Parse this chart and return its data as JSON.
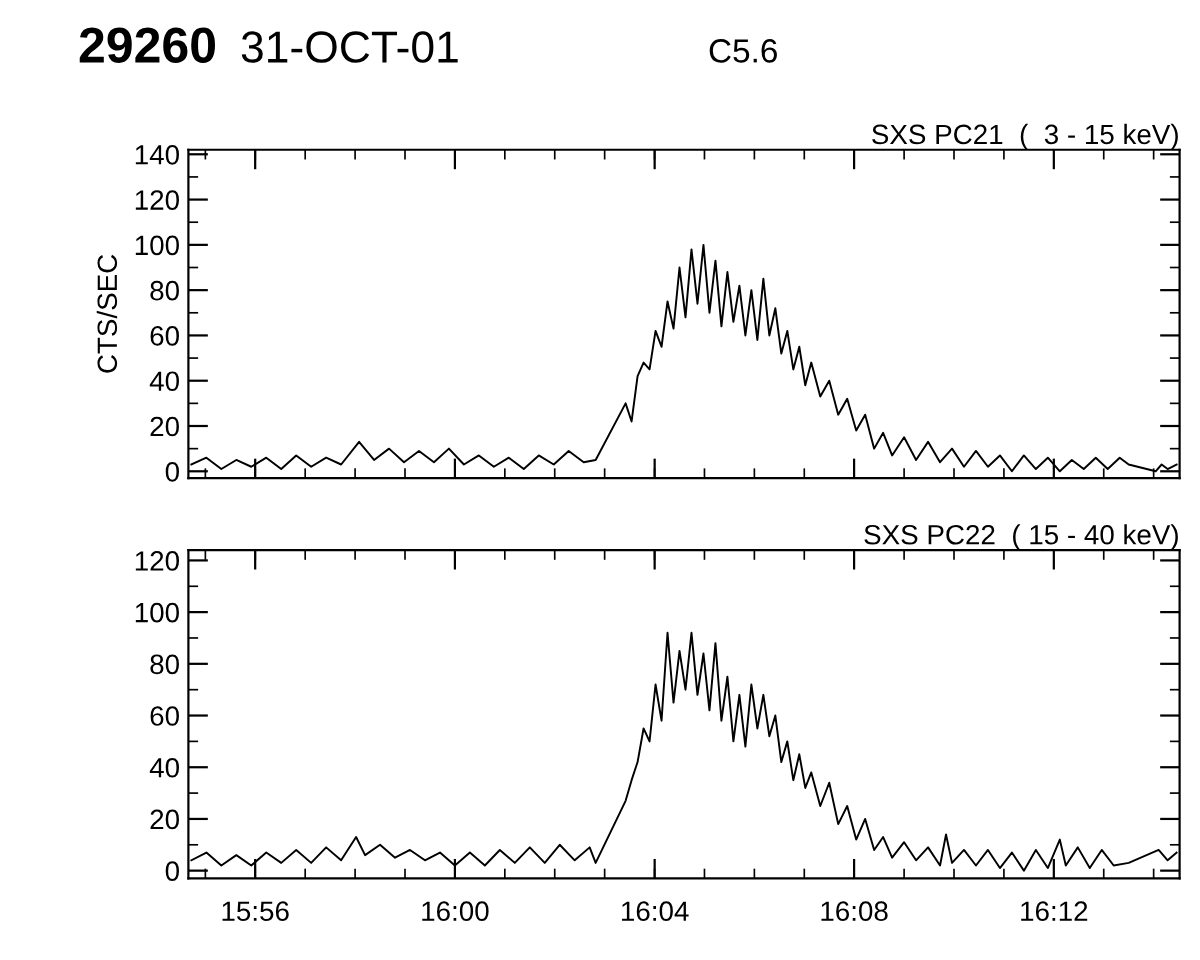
{
  "chart_data": [
    {
      "type": "line",
      "title": "SXS PC21  (  3 - 15 keV)",
      "ylabel": "CTS/SEC",
      "annotations": [
        "29260",
        "31-OCT-01",
        "C5.6"
      ],
      "xlim": [
        15.911,
        16.242
      ],
      "xticks": [
        {
          "value": 15.9333,
          "label": null
        },
        {
          "value": 16.0,
          "label": null
        },
        {
          "value": 16.0667,
          "label": null
        },
        {
          "value": 16.1333,
          "label": null
        },
        {
          "value": 16.2,
          "label": null
        }
      ],
      "ylim": [
        -3,
        142
      ],
      "yticks": [
        0,
        20,
        40,
        60,
        80,
        100,
        120,
        140
      ],
      "tick_labels": "y",
      "series": [
        {
          "color": "#000000",
          "x": [
            15.912,
            15.917,
            15.922,
            15.927,
            15.932,
            15.937,
            15.942,
            15.947,
            15.952,
            15.957,
            15.962,
            15.968,
            15.973,
            15.978,
            15.983,
            15.988,
            15.993,
            15.998,
            16.003,
            16.008,
            16.013,
            16.018,
            16.023,
            16.028,
            16.033,
            16.038,
            16.043,
            16.047,
            16.057,
            16.059,
            16.061,
            16.063,
            16.065,
            16.067,
            16.069,
            16.071,
            16.073,
            16.075,
            16.077,
            16.079,
            16.081,
            16.083,
            16.085,
            16.087,
            16.089,
            16.091,
            16.093,
            16.095,
            16.097,
            16.099,
            16.101,
            16.103,
            16.105,
            16.107,
            16.109,
            16.111,
            16.113,
            16.115,
            16.117,
            16.119,
            16.122,
            16.125,
            16.128,
            16.131,
            16.134,
            16.137,
            16.14,
            16.143,
            16.146,
            16.15,
            16.154,
            16.158,
            16.162,
            16.166,
            16.17,
            16.174,
            16.178,
            16.182,
            16.186,
            16.19,
            16.194,
            16.198,
            16.202,
            16.206,
            16.21,
            16.214,
            16.218,
            16.222,
            16.225,
            16.234,
            16.236,
            16.238,
            16.241
          ],
          "values": [
            3,
            6,
            1,
            5,
            2,
            6,
            1,
            7,
            2,
            6,
            3,
            13,
            5,
            10,
            4,
            9,
            4,
            10,
            3,
            7,
            2,
            6,
            1,
            7,
            3,
            9,
            4,
            5,
            30,
            22,
            42,
            48,
            45,
            62,
            55,
            75,
            63,
            90,
            68,
            98,
            74,
            100,
            70,
            93,
            64,
            88,
            66,
            82,
            60,
            80,
            58,
            85,
            60,
            72,
            52,
            62,
            45,
            55,
            38,
            48,
            33,
            40,
            25,
            32,
            18,
            25,
            10,
            17,
            7,
            15,
            5,
            13,
            4,
            10,
            2,
            9,
            2,
            7,
            0,
            7,
            1,
            6,
            0,
            5,
            1,
            6,
            1,
            6,
            3,
            0,
            3,
            1,
            3
          ]
        }
      ]
    },
    {
      "type": "line",
      "title": "SXS PC22  ( 15 - 40 keV)",
      "xlim": [
        15.911,
        16.242
      ],
      "xticks": [
        {
          "value": 15.9333,
          "label": "15:56"
        },
        {
          "value": 16.0,
          "label": "16:00"
        },
        {
          "value": 16.0667,
          "label": "16:04"
        },
        {
          "value": 16.1333,
          "label": "16:08"
        },
        {
          "value": 16.2,
          "label": "16:12"
        }
      ],
      "ylim": [
        -3,
        124
      ],
      "yticks": [
        0,
        20,
        40,
        60,
        80,
        100,
        120
      ],
      "series": [
        {
          "color": "#000000",
          "x": [
            15.912,
            15.917,
            15.922,
            15.927,
            15.932,
            15.937,
            15.942,
            15.947,
            15.952,
            15.957,
            15.962,
            15.967,
            15.97,
            15.975,
            15.98,
            15.985,
            15.99,
            15.995,
            16.0,
            16.005,
            16.01,
            16.015,
            16.02,
            16.025,
            16.03,
            16.035,
            16.04,
            16.045,
            16.047,
            16.057,
            16.059,
            16.061,
            16.063,
            16.065,
            16.067,
            16.069,
            16.071,
            16.073,
            16.075,
            16.077,
            16.079,
            16.081,
            16.083,
            16.085,
            16.087,
            16.089,
            16.091,
            16.093,
            16.095,
            16.097,
            16.099,
            16.101,
            16.103,
            16.105,
            16.107,
            16.109,
            16.111,
            16.113,
            16.115,
            16.117,
            16.119,
            16.122,
            16.125,
            16.128,
            16.131,
            16.134,
            16.137,
            16.14,
            16.143,
            16.146,
            16.15,
            16.154,
            16.158,
            16.162,
            16.164,
            16.166,
            16.17,
            16.174,
            16.178,
            16.182,
            16.186,
            16.19,
            16.194,
            16.198,
            16.202,
            16.204,
            16.208,
            16.212,
            16.216,
            16.22,
            16.225,
            16.235,
            16.238,
            16.241
          ],
          "values": [
            4,
            7,
            2,
            6,
            2,
            7,
            3,
            8,
            3,
            9,
            4,
            13,
            6,
            10,
            5,
            8,
            4,
            7,
            2,
            7,
            2,
            8,
            3,
            9,
            3,
            10,
            4,
            9,
            3,
            27,
            35,
            42,
            55,
            50,
            72,
            58,
            92,
            65,
            85,
            70,
            92,
            68,
            84,
            62,
            88,
            58,
            75,
            50,
            68,
            48,
            72,
            55,
            68,
            52,
            60,
            42,
            50,
            35,
            45,
            32,
            38,
            25,
            34,
            18,
            25,
            12,
            20,
            8,
            13,
            5,
            11,
            4,
            9,
            2,
            14,
            3,
            8,
            2,
            8,
            1,
            7,
            0,
            8,
            1,
            12,
            2,
            9,
            1,
            8,
            2,
            3,
            8,
            4,
            7
          ]
        }
      ]
    }
  ]
}
